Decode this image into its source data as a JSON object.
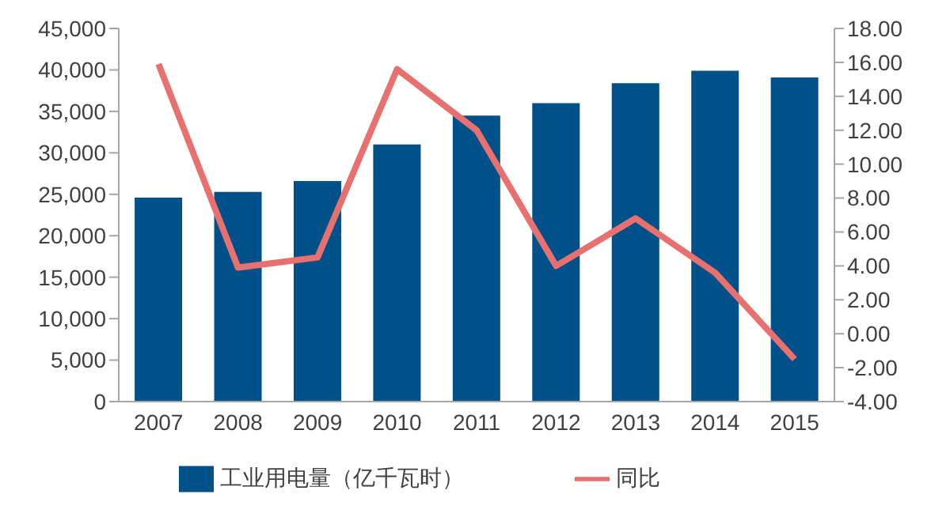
{
  "chart_data": {
    "type": "bar",
    "categories": [
      "2007",
      "2008",
      "2009",
      "2010",
      "2011",
      "2012",
      "2013",
      "2014",
      "2015"
    ],
    "series": [
      {
        "name": "工业用电量（亿千瓦时）",
        "color": "#00508a",
        "values": [
          24600,
          25300,
          26600,
          31000,
          34500,
          36000,
          38400,
          39900,
          39100
        ]
      },
      {
        "name": "同比",
        "type": "line",
        "axis": "y2",
        "color": "#e8706f",
        "values": [
          15.9,
          3.9,
          4.5,
          15.6,
          12.0,
          4.0,
          6.8,
          3.6,
          -1.5
        ]
      }
    ],
    "ylim": [
      0,
      45000
    ],
    "yticks": [
      0,
      {
        "value": 5000,
        "label": "5,000"
      },
      {
        "value": 10000,
        "label": "10,000"
      },
      {
        "value": 15000,
        "label": "15,000"
      },
      {
        "value": 20000,
        "label": "20,000"
      },
      {
        "value": 25000,
        "label": "25,000"
      },
      {
        "value": 30000,
        "label": "30,000"
      },
      {
        "value": 35000,
        "label": "35,000"
      },
      {
        "value": 40000,
        "label": "40,000"
      },
      {
        "value": 45000,
        "label": "45,000"
      }
    ],
    "y2lim": [
      -4,
      18
    ],
    "y2ticks": [
      {
        "value": -4,
        "label": "-4.00"
      },
      {
        "value": -2,
        "label": "-2.00"
      },
      {
        "value": 0,
        "label": "0.00"
      },
      {
        "value": 2,
        "label": "2.00"
      },
      {
        "value": 4,
        "label": "4.00"
      },
      {
        "value": 6,
        "label": "6.00"
      },
      {
        "value": 8,
        "label": "8.00"
      },
      {
        "value": 10,
        "label": "10.00"
      },
      {
        "value": 12,
        "label": "12.00"
      },
      {
        "value": 14,
        "label": "14.00"
      },
      {
        "value": 16,
        "label": "16.00"
      },
      {
        "value": 18,
        "label": "18.00"
      }
    ],
    "grid": false,
    "legend": "bottom",
    "marker": "none"
  }
}
